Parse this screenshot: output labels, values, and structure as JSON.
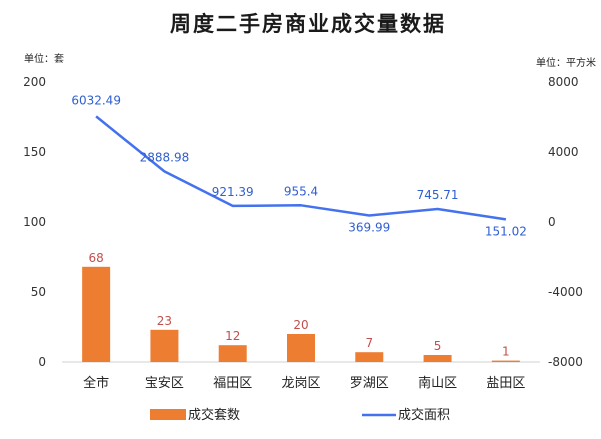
{
  "chart_data": {
    "type": "bar+line",
    "title": "周度二手房商业成交量数据",
    "left_unit": "单位：套",
    "right_unit": "单位：平方米",
    "categories": [
      "全市",
      "宝安区",
      "福田区",
      "龙岗区",
      "罗湖区",
      "南山区",
      "盐田区"
    ],
    "series": [
      {
        "name": "成交套数",
        "type": "bar",
        "axis": "left",
        "color": "#ed7d31",
        "values": [
          68,
          23,
          12,
          20,
          7,
          5,
          1
        ]
      },
      {
        "name": "成交面积",
        "type": "line",
        "axis": "right",
        "color": "#4472ee",
        "values": [
          6032.49,
          2888.98,
          921.39,
          955.4,
          369.99,
          745.71,
          151.02
        ]
      }
    ],
    "left_axis": {
      "min": 0,
      "max": 200,
      "ticks": [
        0,
        50,
        100,
        150,
        200
      ]
    },
    "right_axis": {
      "min": -8000,
      "max": 8000,
      "ticks": [
        -8000,
        -4000,
        0,
        4000,
        8000
      ]
    },
    "grid": false,
    "legend_position": "bottom"
  }
}
